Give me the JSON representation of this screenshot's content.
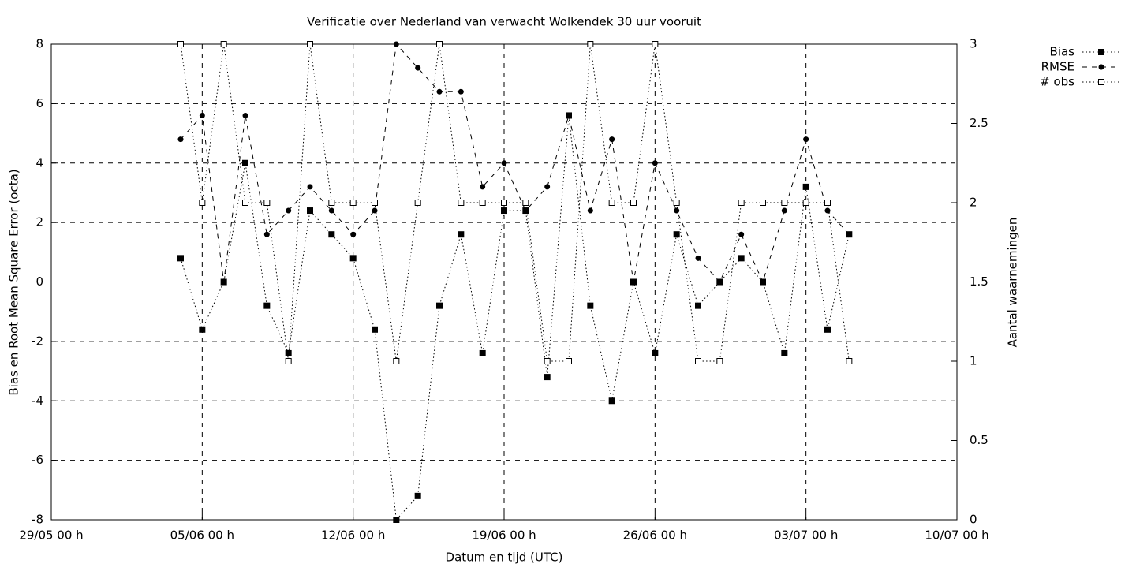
{
  "chart_data": {
    "type": "line",
    "title": "Verificatie over Nederland van verwacht Wolkendek 30 uur vooruit",
    "x_label": "Datum en tijd (UTC)",
    "y_label": "Bias en Root Mean Square Error (octa)",
    "y2_label": "Aantal waarnemingen",
    "x": [
      6,
      7,
      8,
      9,
      10,
      11,
      12,
      13,
      14,
      15,
      16,
      17,
      18,
      19,
      20,
      21,
      22,
      23,
      24,
      25,
      26,
      27,
      28,
      29,
      30,
      31,
      32,
      33,
      34,
      35,
      36,
      37
    ],
    "xlim": [
      0,
      42
    ],
    "xticks": [
      {
        "value": 0,
        "label": "29/05 00 h"
      },
      {
        "value": 7,
        "label": "05/06 00 h"
      },
      {
        "value": 14,
        "label": "12/06 00 h"
      },
      {
        "value": 21,
        "label": "19/06 00 h"
      },
      {
        "value": 28,
        "label": "26/06 00 h"
      },
      {
        "value": 35,
        "label": "03/07 00 h"
      },
      {
        "value": 42,
        "label": "10/07 00 h"
      }
    ],
    "ylim": [
      -8,
      8
    ],
    "yticks": [
      -8,
      -6,
      -4,
      -2,
      0,
      2,
      4,
      6,
      8
    ],
    "y2lim": [
      0,
      3
    ],
    "y2ticks": [
      0,
      0.5,
      1,
      1.5,
      2,
      2.5,
      3
    ],
    "grid": true,
    "legend": "top-right",
    "series": [
      {
        "name": "Bias",
        "color": "#000000",
        "marker": "filled-square",
        "line": "dotted",
        "values": [
          0.8,
          -1.6,
          0,
          4,
          -0.8,
          -2.4,
          2.4,
          1.6,
          0.8,
          -1.6,
          -8,
          -7.2,
          -0.8,
          1.6,
          -2.4,
          2.4,
          2.4,
          -3.2,
          5.6,
          -0.8,
          -4,
          0,
          -2.4,
          1.6,
          -0.8,
          0,
          0.8,
          0,
          -2.4,
          3.2,
          -1.6,
          1.6
        ]
      },
      {
        "name": "RMSE",
        "color": "#000000",
        "marker": "filled-circle",
        "line": "dashed",
        "values": [
          4.8,
          5.6,
          0,
          5.6,
          1.6,
          2.4,
          3.2,
          2.4,
          1.6,
          2.4,
          8,
          7.2,
          6.4,
          6.4,
          3.2,
          4,
          2.4,
          3.2,
          5.6,
          2.4,
          4.8,
          0,
          4,
          2.4,
          0.8,
          0,
          1.6,
          0,
          2.4,
          4.8,
          2.4,
          1.6
        ]
      },
      {
        "name": "# obs",
        "color": "#000000",
        "marker": "open-square",
        "line": "dotted",
        "axis": "y2",
        "values": [
          3,
          2,
          3,
          2,
          2,
          1,
          3,
          2,
          2,
          2,
          1,
          2,
          3,
          2,
          2,
          2,
          2,
          1,
          1,
          3,
          2,
          2,
          3,
          2,
          1,
          1,
          2,
          2,
          2,
          2,
          2,
          1
        ]
      }
    ]
  }
}
